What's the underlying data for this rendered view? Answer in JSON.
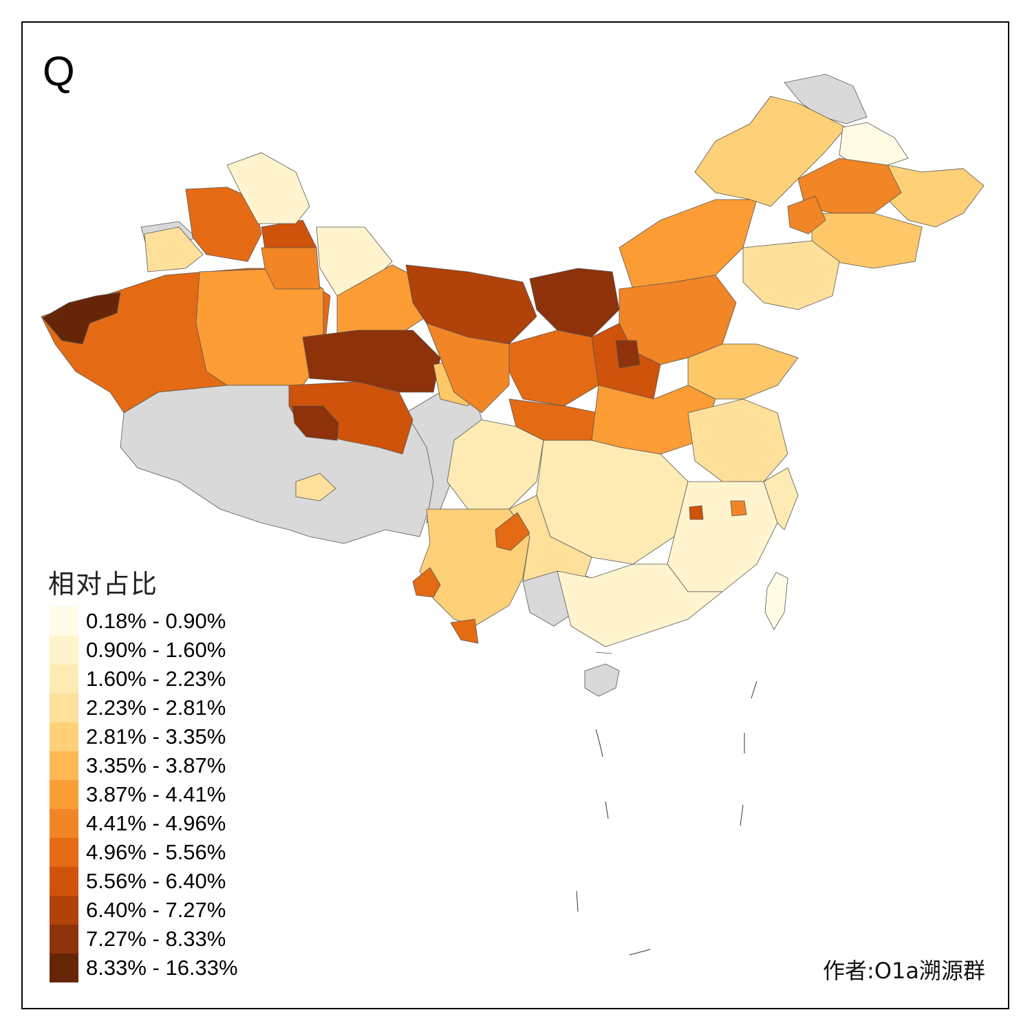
{
  "panel_label": "Q",
  "legend": {
    "title": "相对占比",
    "classes": [
      {
        "label": "0.18% - 0.90%",
        "color": "#FFFBE5"
      },
      {
        "label": "0.90% - 1.60%",
        "color": "#FFF4CD"
      },
      {
        "label": "1.60% - 2.23%",
        "color": "#FEEBB4"
      },
      {
        "label": "2.23% - 2.81%",
        "color": "#FEE09B"
      },
      {
        "label": "2.81% - 3.35%",
        "color": "#FED077"
      },
      {
        "label": "3.35% - 3.87%",
        "color": "#FEB753"
      },
      {
        "label": "3.87% - 4.41%",
        "color": "#FB9C35"
      },
      {
        "label": "4.41% - 4.96%",
        "color": "#F28525"
      },
      {
        "label": "4.96% - 5.56%",
        "color": "#E46B14"
      },
      {
        "label": "5.56% - 6.40%",
        "color": "#CF530A"
      },
      {
        "label": "6.40% - 7.27%",
        "color": "#B0420A"
      },
      {
        "label": "7.27% - 8.33%",
        "color": "#8D320A"
      },
      {
        "label": "8.33% - 16.33%",
        "color": "#672508"
      }
    ]
  },
  "no_data_color": "#D9D9D9",
  "credit": "作者:O1a溯源群"
}
